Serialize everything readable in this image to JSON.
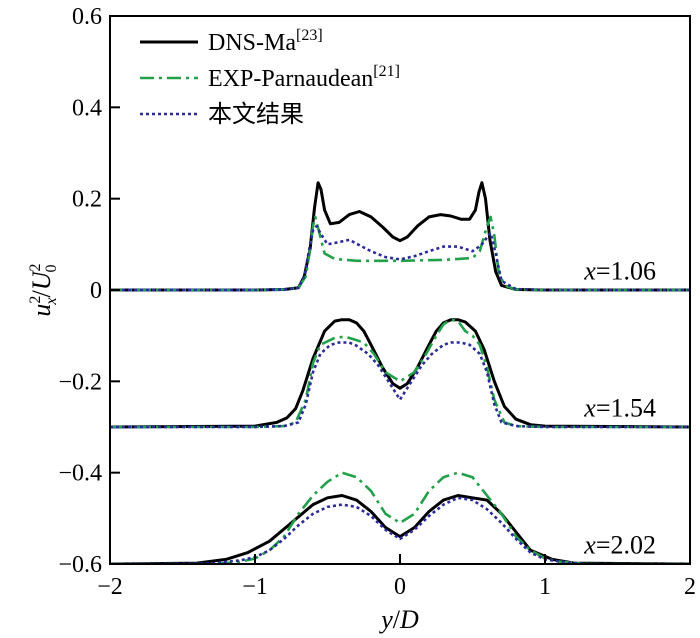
{
  "chart_data": {
    "type": "line",
    "xlabel": {
      "var": "y",
      "slash": "/",
      "den": "D"
    },
    "ylabel": {
      "num_base": "u",
      "num_sup": "2",
      "num_sub": "x",
      "slash": "/",
      "den_base": "U",
      "den_sup": "2",
      "den_sub": "0"
    },
    "xlim": [
      -2,
      2
    ],
    "ylim": [
      -0.6,
      0.6
    ],
    "xticks": [
      -2,
      -1,
      0,
      1,
      2
    ],
    "xtick_labels": [
      "−2",
      "−1",
      "0",
      "1",
      "2"
    ],
    "yticks": [
      -0.6,
      -0.4,
      -0.2,
      0,
      0.2,
      0.4,
      0.6
    ],
    "ytick_labels": [
      "−0.6",
      "−0.4",
      "−0.2",
      "0",
      "0.2",
      "0.4",
      "0.6"
    ],
    "grid": false,
    "legend_position": "top-left",
    "legend": [
      {
        "key": "dns",
        "label": "DNS-Ma",
        "ref": "[23]",
        "color": "#000000",
        "dash": "solid"
      },
      {
        "key": "exp",
        "label": "EXP-Parnaudean",
        "ref": "[21]",
        "color": "#22a04a",
        "dash": "dashdot"
      },
      {
        "key": "sim",
        "label": "本文结果",
        "ref": "",
        "color": "#2b2b9a",
        "dash": "dotted"
      }
    ],
    "station_labels": [
      {
        "var": "x",
        "eq": "=1.06",
        "y": 0.04
      },
      {
        "var": "x",
        "eq": "=1.54",
        "y": -0.26
      },
      {
        "var": "x",
        "eq": "=2.02",
        "y": -0.56
      }
    ],
    "series": [
      {
        "style": "dns",
        "group": "x=1.06",
        "points": [
          [
            -2,
            0
          ],
          [
            -1,
            0
          ],
          [
            -0.8,
            0.001
          ],
          [
            -0.7,
            0.005
          ],
          [
            -0.66,
            0.03
          ],
          [
            -0.62,
            0.09
          ],
          [
            -0.59,
            0.18
          ],
          [
            -0.565,
            0.235
          ],
          [
            -0.545,
            0.22
          ],
          [
            -0.52,
            0.175
          ],
          [
            -0.48,
            0.145
          ],
          [
            -0.42,
            0.148
          ],
          [
            -0.35,
            0.165
          ],
          [
            -0.28,
            0.172
          ],
          [
            -0.2,
            0.16
          ],
          [
            -0.12,
            0.138
          ],
          [
            -0.05,
            0.116
          ],
          [
            0,
            0.108
          ],
          [
            0.05,
            0.116
          ],
          [
            0.12,
            0.14
          ],
          [
            0.2,
            0.16
          ],
          [
            0.28,
            0.165
          ],
          [
            0.35,
            0.162
          ],
          [
            0.42,
            0.155
          ],
          [
            0.48,
            0.155
          ],
          [
            0.52,
            0.175
          ],
          [
            0.545,
            0.215
          ],
          [
            0.565,
            0.235
          ],
          [
            0.59,
            0.2
          ],
          [
            0.62,
            0.11
          ],
          [
            0.66,
            0.04
          ],
          [
            0.7,
            0.01
          ],
          [
            0.8,
            0.001
          ],
          [
            1,
            0
          ],
          [
            2,
            0
          ]
        ]
      },
      {
        "style": "exp",
        "group": "x=1.06",
        "points": [
          [
            -2,
            0
          ],
          [
            -1,
            0
          ],
          [
            -0.8,
            0.001
          ],
          [
            -0.7,
            0.005
          ],
          [
            -0.65,
            0.03
          ],
          [
            -0.62,
            0.09
          ],
          [
            -0.6,
            0.14
          ],
          [
            -0.585,
            0.16
          ],
          [
            -0.56,
            0.13
          ],
          [
            -0.52,
            0.08
          ],
          [
            -0.45,
            0.068
          ],
          [
            -0.3,
            0.064
          ],
          [
            0,
            0.064
          ],
          [
            0.3,
            0.066
          ],
          [
            0.5,
            0.07
          ],
          [
            0.55,
            0.085
          ],
          [
            0.6,
            0.14
          ],
          [
            0.625,
            0.16
          ],
          [
            0.65,
            0.12
          ],
          [
            0.68,
            0.04
          ],
          [
            0.72,
            0.01
          ],
          [
            0.8,
            0.001
          ],
          [
            1,
            0
          ],
          [
            2,
            0
          ]
        ]
      },
      {
        "style": "sim",
        "group": "x=1.06",
        "points": [
          [
            -2,
            0
          ],
          [
            -1,
            0
          ],
          [
            -0.8,
            0.001
          ],
          [
            -0.7,
            0.005
          ],
          [
            -0.66,
            0.03
          ],
          [
            -0.62,
            0.1
          ],
          [
            -0.6,
            0.13
          ],
          [
            -0.575,
            0.14
          ],
          [
            -0.55,
            0.125
          ],
          [
            -0.5,
            0.1
          ],
          [
            -0.42,
            0.105
          ],
          [
            -0.35,
            0.11
          ],
          [
            -0.28,
            0.098
          ],
          [
            -0.2,
            0.085
          ],
          [
            -0.1,
            0.072
          ],
          [
            0,
            0.067
          ],
          [
            0.1,
            0.074
          ],
          [
            0.2,
            0.085
          ],
          [
            0.3,
            0.095
          ],
          [
            0.4,
            0.095
          ],
          [
            0.5,
            0.085
          ],
          [
            0.56,
            0.098
          ],
          [
            0.6,
            0.115
          ],
          [
            0.625,
            0.125
          ],
          [
            0.66,
            0.08
          ],
          [
            0.7,
            0.02
          ],
          [
            0.8,
            0.002
          ],
          [
            1,
            0
          ],
          [
            2,
            0
          ]
        ]
      },
      {
        "style": "dns",
        "group": "x=1.54",
        "points": [
          [
            -2,
            -0.3
          ],
          [
            -1,
            -0.298
          ],
          [
            -0.85,
            -0.29
          ],
          [
            -0.78,
            -0.28
          ],
          [
            -0.72,
            -0.26
          ],
          [
            -0.67,
            -0.22
          ],
          [
            -0.6,
            -0.15
          ],
          [
            -0.52,
            -0.09
          ],
          [
            -0.45,
            -0.068
          ],
          [
            -0.4,
            -0.065
          ],
          [
            -0.35,
            -0.065
          ],
          [
            -0.3,
            -0.072
          ],
          [
            -0.25,
            -0.09
          ],
          [
            -0.2,
            -0.12
          ],
          [
            -0.12,
            -0.17
          ],
          [
            -0.05,
            -0.205
          ],
          [
            0,
            -0.215
          ],
          [
            0.05,
            -0.205
          ],
          [
            0.12,
            -0.17
          ],
          [
            0.2,
            -0.12
          ],
          [
            0.25,
            -0.09
          ],
          [
            0.3,
            -0.072
          ],
          [
            0.35,
            -0.065
          ],
          [
            0.4,
            -0.065
          ],
          [
            0.45,
            -0.07
          ],
          [
            0.52,
            -0.09
          ],
          [
            0.58,
            -0.13
          ],
          [
            0.65,
            -0.2
          ],
          [
            0.72,
            -0.255
          ],
          [
            0.8,
            -0.283
          ],
          [
            0.9,
            -0.295
          ],
          [
            1,
            -0.298
          ],
          [
            2,
            -0.3
          ]
        ]
      },
      {
        "style": "exp",
        "group": "x=1.54",
        "points": [
          [
            -2,
            -0.3
          ],
          [
            -1,
            -0.3
          ],
          [
            -0.8,
            -0.298
          ],
          [
            -0.72,
            -0.29
          ],
          [
            -0.65,
            -0.24
          ],
          [
            -0.6,
            -0.16
          ],
          [
            -0.55,
            -0.12
          ],
          [
            -0.45,
            -0.105
          ],
          [
            -0.38,
            -0.102
          ],
          [
            -0.32,
            -0.108
          ],
          [
            -0.25,
            -0.115
          ],
          [
            -0.18,
            -0.14
          ],
          [
            -0.1,
            -0.18
          ],
          [
            0,
            -0.2
          ],
          [
            0.1,
            -0.18
          ],
          [
            0.18,
            -0.14
          ],
          [
            0.25,
            -0.1
          ],
          [
            0.3,
            -0.075
          ],
          [
            0.35,
            -0.065
          ],
          [
            0.4,
            -0.068
          ],
          [
            0.45,
            -0.09
          ],
          [
            0.5,
            -0.1
          ],
          [
            0.55,
            -0.12
          ],
          [
            0.6,
            -0.17
          ],
          [
            0.65,
            -0.24
          ],
          [
            0.72,
            -0.29
          ],
          [
            0.8,
            -0.298
          ],
          [
            1,
            -0.3
          ],
          [
            2,
            -0.3
          ]
        ]
      },
      {
        "style": "sim",
        "group": "x=1.54",
        "points": [
          [
            -2,
            -0.3
          ],
          [
            -1,
            -0.3
          ],
          [
            -0.8,
            -0.298
          ],
          [
            -0.7,
            -0.29
          ],
          [
            -0.65,
            -0.25
          ],
          [
            -0.6,
            -0.18
          ],
          [
            -0.55,
            -0.14
          ],
          [
            -0.48,
            -0.12
          ],
          [
            -0.42,
            -0.115
          ],
          [
            -0.35,
            -0.115
          ],
          [
            -0.3,
            -0.122
          ],
          [
            -0.22,
            -0.14
          ],
          [
            -0.15,
            -0.165
          ],
          [
            -0.08,
            -0.2
          ],
          [
            0,
            -0.24
          ],
          [
            0.08,
            -0.2
          ],
          [
            0.15,
            -0.165
          ],
          [
            0.22,
            -0.14
          ],
          [
            0.3,
            -0.12
          ],
          [
            0.35,
            -0.115
          ],
          [
            0.42,
            -0.115
          ],
          [
            0.48,
            -0.12
          ],
          [
            0.55,
            -0.14
          ],
          [
            0.6,
            -0.18
          ],
          [
            0.65,
            -0.25
          ],
          [
            0.7,
            -0.29
          ],
          [
            0.8,
            -0.298
          ],
          [
            1,
            -0.3
          ],
          [
            2,
            -0.3
          ]
        ]
      },
      {
        "style": "dns",
        "group": "x=2.02",
        "points": [
          [
            -2,
            -0.6
          ],
          [
            -1.4,
            -0.598
          ],
          [
            -1.2,
            -0.59
          ],
          [
            -1.05,
            -0.575
          ],
          [
            -0.9,
            -0.55
          ],
          [
            -0.75,
            -0.51
          ],
          [
            -0.6,
            -0.47
          ],
          [
            -0.5,
            -0.455
          ],
          [
            -0.4,
            -0.45
          ],
          [
            -0.3,
            -0.46
          ],
          [
            -0.2,
            -0.485
          ],
          [
            -0.1,
            -0.52
          ],
          [
            0,
            -0.54
          ],
          [
            0.1,
            -0.52
          ],
          [
            0.2,
            -0.485
          ],
          [
            0.3,
            -0.46
          ],
          [
            0.4,
            -0.45
          ],
          [
            0.5,
            -0.455
          ],
          [
            0.6,
            -0.46
          ],
          [
            0.7,
            -0.49
          ],
          [
            0.8,
            -0.53
          ],
          [
            0.9,
            -0.57
          ],
          [
            1.05,
            -0.59
          ],
          [
            1.2,
            -0.598
          ],
          [
            2,
            -0.6
          ]
        ]
      },
      {
        "style": "exp",
        "group": "x=2.02",
        "points": [
          [
            -2,
            -0.6
          ],
          [
            -1.3,
            -0.6
          ],
          [
            -1.1,
            -0.595
          ],
          [
            -1,
            -0.588
          ],
          [
            -0.9,
            -0.57
          ],
          [
            -0.8,
            -0.54
          ],
          [
            -0.7,
            -0.49
          ],
          [
            -0.6,
            -0.45
          ],
          [
            -0.5,
            -0.42
          ],
          [
            -0.4,
            -0.4
          ],
          [
            -0.3,
            -0.41
          ],
          [
            -0.2,
            -0.44
          ],
          [
            -0.1,
            -0.49
          ],
          [
            0,
            -0.51
          ],
          [
            0.1,
            -0.49
          ],
          [
            0.2,
            -0.44
          ],
          [
            0.3,
            -0.41
          ],
          [
            0.4,
            -0.4
          ],
          [
            0.5,
            -0.41
          ],
          [
            0.6,
            -0.45
          ],
          [
            0.7,
            -0.49
          ],
          [
            0.8,
            -0.54
          ],
          [
            0.9,
            -0.57
          ],
          [
            1,
            -0.588
          ],
          [
            1.1,
            -0.595
          ],
          [
            1.3,
            -0.6
          ],
          [
            2,
            -0.6
          ]
        ]
      },
      {
        "style": "sim",
        "group": "x=2.02",
        "points": [
          [
            -2,
            -0.6
          ],
          [
            -1.3,
            -0.599
          ],
          [
            -1.1,
            -0.592
          ],
          [
            -1,
            -0.585
          ],
          [
            -0.9,
            -0.57
          ],
          [
            -0.8,
            -0.545
          ],
          [
            -0.7,
            -0.515
          ],
          [
            -0.6,
            -0.49
          ],
          [
            -0.5,
            -0.475
          ],
          [
            -0.4,
            -0.47
          ],
          [
            -0.3,
            -0.475
          ],
          [
            -0.2,
            -0.495
          ],
          [
            -0.1,
            -0.525
          ],
          [
            0,
            -0.545
          ],
          [
            0.1,
            -0.525
          ],
          [
            0.2,
            -0.495
          ],
          [
            0.3,
            -0.47
          ],
          [
            0.4,
            -0.455
          ],
          [
            0.5,
            -0.46
          ],
          [
            0.6,
            -0.48
          ],
          [
            0.7,
            -0.51
          ],
          [
            0.8,
            -0.545
          ],
          [
            0.9,
            -0.575
          ],
          [
            1,
            -0.59
          ],
          [
            1.15,
            -0.597
          ],
          [
            1.3,
            -0.6
          ],
          [
            2,
            -0.6
          ]
        ]
      }
    ]
  }
}
